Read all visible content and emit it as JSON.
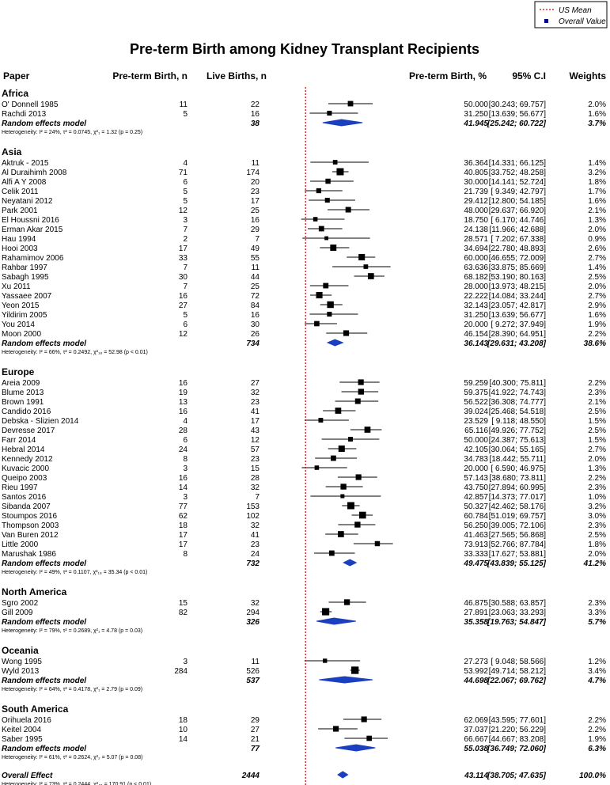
{
  "title": "Pre-term Birth among Kidney Transplant Recipients",
  "legend": {
    "us_mean": "US Mean",
    "overall": "Overall Value"
  },
  "headers": {
    "paper": "Paper",
    "events": "Pre-term Birth, n",
    "total": "Live Births, n",
    "pct": "Pre-term Birth, %",
    "ci": "95% C.I",
    "weights": "Weights"
  },
  "colors": {
    "box": "#000080",
    "diamond": "#1a3fbf",
    "ref": "#cc0000"
  },
  "chart_data": {
    "type": "forest",
    "xlabel": "Pre-term Birth, %",
    "xlim": [
      0,
      100
    ],
    "xticks": [
      "0",
      "20",
      "40",
      "60",
      "80",
      "100"
    ],
    "reference_line": 10,
    "groups": [
      {
        "name": "Africa",
        "studies": [
          {
            "paper": "O' Donnell 1985",
            "n": "11",
            "total": "22",
            "est": "50.000",
            "ci": "[30.243; 69.757]",
            "w": "2.0%"
          },
          {
            "paper": "Rachdi 2013",
            "n": "5",
            "total": "16",
            "est": "31.250",
            "ci": "[13.639; 56.677]",
            "w": "1.6%"
          }
        ],
        "re": {
          "label": "Random effects model",
          "total": "38",
          "est": "41.945",
          "ci": "[25.242; 60.722]",
          "w": "3.7%"
        },
        "het": "Heterogeneity: I² = 24%, τ² = 0.0745, χ²₁ = 1.32 (p = 0.25)"
      },
      {
        "name": "Asia",
        "studies": [
          {
            "paper": "Aktruk - 2015",
            "n": "4",
            "total": "11",
            "est": "36.364",
            "ci": "[14.331; 66.125]",
            "w": "1.4%"
          },
          {
            "paper": "Al Duraihimh 2008",
            "n": "71",
            "total": "174",
            "est": "40.805",
            "ci": "[33.752; 48.258]",
            "w": "3.2%"
          },
          {
            "paper": "Alfi A Y 2008",
            "n": "6",
            "total": "20",
            "est": "30.000",
            "ci": "[14.141; 52.724]",
            "w": "1.8%"
          },
          {
            "paper": "Celik 2011",
            "n": "5",
            "total": "23",
            "est": "21.739",
            "ci": "[ 9.349; 42.797]",
            "w": "1.7%"
          },
          {
            "paper": "Neyatani 2012",
            "n": "5",
            "total": "17",
            "est": "29.412",
            "ci": "[12.800; 54.185]",
            "w": "1.6%"
          },
          {
            "paper": "Park 2001",
            "n": "12",
            "total": "25",
            "est": "48.000",
            "ci": "[29.637; 66.920]",
            "w": "2.1%"
          },
          {
            "paper": "El Houssni 2016",
            "n": "3",
            "total": "16",
            "est": "18.750",
            "ci": "[ 6.170; 44.746]",
            "w": "1.3%"
          },
          {
            "paper": "Erman Akar 2015",
            "n": "7",
            "total": "29",
            "est": "24.138",
            "ci": "[11.966; 42.688]",
            "w": "2.0%"
          },
          {
            "paper": "Hau 1994",
            "n": "2",
            "total": "7",
            "est": "28.571",
            "ci": "[ 7.202; 67.338]",
            "w": "0.9%"
          },
          {
            "paper": "Hooi 2003",
            "n": "17",
            "total": "49",
            "est": "34.694",
            "ci": "[22.780; 48.893]",
            "w": "2.6%"
          },
          {
            "paper": "Rahamimov 2006",
            "n": "33",
            "total": "55",
            "est": "60.000",
            "ci": "[46.655; 72.009]",
            "w": "2.7%"
          },
          {
            "paper": "Rahbar 1997",
            "n": "7",
            "total": "11",
            "est": "63.636",
            "ci": "[33.875; 85.669]",
            "w": "1.4%"
          },
          {
            "paper": "Sabagh 1995",
            "n": "30",
            "total": "44",
            "est": "68.182",
            "ci": "[53.190; 80.163]",
            "w": "2.5%"
          },
          {
            "paper": "Xu 2011",
            "n": "7",
            "total": "25",
            "est": "28.000",
            "ci": "[13.973; 48.215]",
            "w": "2.0%"
          },
          {
            "paper": "Yassaee 2007",
            "n": "16",
            "total": "72",
            "est": "22.222",
            "ci": "[14.084; 33.244]",
            "w": "2.7%"
          },
          {
            "paper": "Yeon 2015",
            "n": "27",
            "total": "84",
            "est": "32.143",
            "ci": "[23.057; 42.817]",
            "w": "2.9%"
          },
          {
            "paper": "Yildirim 2005",
            "n": "5",
            "total": "16",
            "est": "31.250",
            "ci": "[13.639; 56.677]",
            "w": "1.6%"
          },
          {
            "paper": "You 2014",
            "n": "6",
            "total": "30",
            "est": "20.000",
            "ci": "[ 9.272; 37.949]",
            "w": "1.9%"
          },
          {
            "paper": "Moon 2000",
            "n": "12",
            "total": "26",
            "est": "46.154",
            "ci": "[28.390; 64.951]",
            "w": "2.2%"
          }
        ],
        "re": {
          "label": "Random effects model",
          "total": "734",
          "est": "36.143",
          "ci": "[29.631; 43.208]",
          "w": "38.6%"
        },
        "het": "Heterogeneity: I² = 66%, τ² = 0.2492, χ²₁₈ = 52.98 (p < 0.01)"
      },
      {
        "name": "Europe",
        "studies": [
          {
            "paper": "Areia 2009",
            "n": "16",
            "total": "27",
            "est": "59.259",
            "ci": "[40.300; 75.811]",
            "w": "2.2%"
          },
          {
            "paper": "Blume 2013",
            "n": "19",
            "total": "32",
            "est": "59.375",
            "ci": "[41.922; 74.743]",
            "w": "2.3%"
          },
          {
            "paper": "Brown 1991",
            "n": "13",
            "total": "23",
            "est": "56.522",
            "ci": "[36.308; 74.777]",
            "w": "2.1%"
          },
          {
            "paper": "Candido 2016",
            "n": "16",
            "total": "41",
            "est": "39.024",
            "ci": "[25.468; 54.518]",
            "w": "2.5%"
          },
          {
            "paper": "Debska - Slizien 2014",
            "n": "4",
            "total": "17",
            "est": "23.529",
            "ci": "[ 9.118; 48.550]",
            "w": "1.5%"
          },
          {
            "paper": "Devresse 2017",
            "n": "28",
            "total": "43",
            "est": "65.116",
            "ci": "[49.926; 77.752]",
            "w": "2.5%"
          },
          {
            "paper": "Farr 2014",
            "n": "6",
            "total": "12",
            "est": "50.000",
            "ci": "[24.387; 75.613]",
            "w": "1.5%"
          },
          {
            "paper": "Hebral 2014",
            "n": "24",
            "total": "57",
            "est": "42.105",
            "ci": "[30.064; 55.165]",
            "w": "2.7%"
          },
          {
            "paper": "Kennedy 2012",
            "n": "8",
            "total": "23",
            "est": "34.783",
            "ci": "[18.442; 55.711]",
            "w": "2.0%"
          },
          {
            "paper": "Kuvacic 2000",
            "n": "3",
            "total": "15",
            "est": "20.000",
            "ci": "[ 6.590; 46.975]",
            "w": "1.3%"
          },
          {
            "paper": "Queipo 2003",
            "n": "16",
            "total": "28",
            "est": "57.143",
            "ci": "[38.680; 73.811]",
            "w": "2.2%"
          },
          {
            "paper": "Rieu 1997",
            "n": "14",
            "total": "32",
            "est": "43.750",
            "ci": "[27.894; 60.995]",
            "w": "2.3%"
          },
          {
            "paper": "Santos 2016",
            "n": "3",
            "total": "7",
            "est": "42.857",
            "ci": "[14.373; 77.017]",
            "w": "1.0%"
          },
          {
            "paper": "Sibanda 2007",
            "n": "77",
            "total": "153",
            "est": "50.327",
            "ci": "[42.462; 58.176]",
            "w": "3.2%"
          },
          {
            "paper": "Stoumpos 2016",
            "n": "62",
            "total": "102",
            "est": "60.784",
            "ci": "[51.019; 69.757]",
            "w": "3.0%"
          },
          {
            "paper": "Thompson 2003",
            "n": "18",
            "total": "32",
            "est": "56.250",
            "ci": "[39.005; 72.106]",
            "w": "2.3%"
          },
          {
            "paper": "Van Buren 2012",
            "n": "17",
            "total": "41",
            "est": "41.463",
            "ci": "[27.565; 56.868]",
            "w": "2.5%"
          },
          {
            "paper": "Little 2000",
            "n": "17",
            "total": "23",
            "est": "73.913",
            "ci": "[52.766; 87.784]",
            "w": "1.8%"
          },
          {
            "paper": "Marushak 1986",
            "n": "8",
            "total": "24",
            "est": "33.333",
            "ci": "[17.627; 53.881]",
            "w": "2.0%"
          }
        ],
        "re": {
          "label": "Random effects model",
          "total": "732",
          "est": "49.475",
          "ci": "[43.839; 55.125]",
          "w": "41.2%"
        },
        "het": "Heterogeneity: I² = 49%, τ² = 0.1107, χ²₁₈ = 35.34 (p < 0.01)"
      },
      {
        "name": "North America",
        "studies": [
          {
            "paper": "Sgro 2002",
            "n": "15",
            "total": "32",
            "est": "46.875",
            "ci": "[30.588; 63.857]",
            "w": "2.3%"
          },
          {
            "paper": "Gill 2009",
            "n": "82",
            "total": "294",
            "est": "27.891",
            "ci": "[23.063; 33.293]",
            "w": "3.3%"
          }
        ],
        "re": {
          "label": "Random effects model",
          "total": "326",
          "est": "35.358",
          "ci": "[19.763; 54.847]",
          "w": "5.7%"
        },
        "het": "Heterogeneity: I² = 79%, τ² = 0.2689, χ²₁ = 4.78 (p = 0.03)"
      },
      {
        "name": "Oceania",
        "studies": [
          {
            "paper": "Wong 1995",
            "n": "3",
            "total": "11",
            "est": "27.273",
            "ci": "[ 9.048; 58.566]",
            "w": "1.2%"
          },
          {
            "paper": "Wyld 2013",
            "n": "284",
            "total": "526",
            "est": "53.992",
            "ci": "[49.714; 58.212]",
            "w": "3.4%"
          }
        ],
        "re": {
          "label": "Random effects model",
          "total": "537",
          "est": "44.698",
          "ci": "[22.067; 69.762]",
          "w": "4.7%"
        },
        "het": "Heterogeneity: I² = 64%, τ² = 0.4178, χ²₁ = 2.79 (p = 0.09)"
      },
      {
        "name": "South America",
        "studies": [
          {
            "paper": "Orihuela 2016",
            "n": "18",
            "total": "29",
            "est": "62.069",
            "ci": "[43.595; 77.601]",
            "w": "2.2%"
          },
          {
            "paper": "Keitel 2004",
            "n": "10",
            "total": "27",
            "est": "37.037",
            "ci": "[21.220; 56.229]",
            "w": "2.2%"
          },
          {
            "paper": "Saber 1995",
            "n": "14",
            "total": "21",
            "est": "66.667",
            "ci": "[44.667; 83.208]",
            "w": "1.9%"
          }
        ],
        "re": {
          "label": "Random effects model",
          "total": "77",
          "est": "55.038",
          "ci": "[36.749; 72.060]",
          "w": "6.3%"
        },
        "het": "Heterogeneity: I² = 61%, τ² = 0.2624, χ²₂ = 5.07 (p = 0.08)"
      }
    ],
    "overall": {
      "label": "Overall Effect",
      "total": "2444",
      "est": "43.114",
      "ci": "[38.705; 47.635]",
      "w": "100.0%"
    },
    "overall_het": "Heterogeneity: I² = 73%, τ² = 0.2444, χ²₄₆ = 170.91 (p < 0.01)"
  }
}
